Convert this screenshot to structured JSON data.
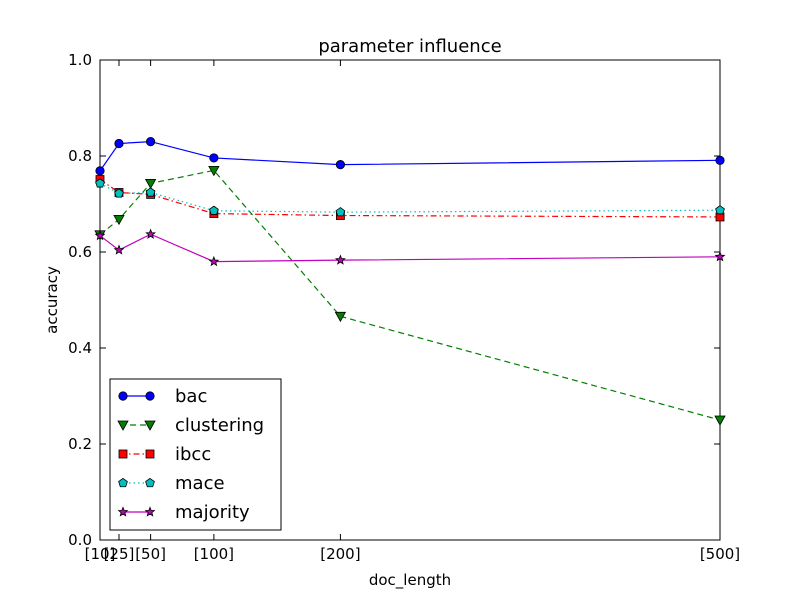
{
  "chart_data": {
    "type": "line",
    "title": "parameter influence",
    "xlabel": "doc_length",
    "ylabel": "accuracy",
    "x": [
      10,
      25,
      50,
      100,
      200,
      500
    ],
    "xtick_labels": [
      "[10]",
      "[25]",
      "[50]",
      "[100]",
      "[200]",
      "[500]"
    ],
    "xlim": [
      10,
      500
    ],
    "ylim": [
      0.0,
      1.0
    ],
    "yticks": [
      "0.0",
      "0.2",
      "0.4",
      "0.6",
      "0.8",
      "1.0"
    ],
    "grid": false,
    "legend_position": "lower-left",
    "series": [
      {
        "name": "bac",
        "color": "#0000ff",
        "marker": "circle",
        "linestyle": "solid",
        "values": [
          0.769,
          0.826,
          0.83,
          0.796,
          0.782,
          0.791
        ]
      },
      {
        "name": "clustering",
        "color": "#007f00",
        "marker": "triangle-down",
        "linestyle": "dashed",
        "values": [
          0.636,
          0.668,
          0.743,
          0.77,
          0.466,
          0.25
        ]
      },
      {
        "name": "ibcc",
        "color": "#ff0000",
        "marker": "square",
        "linestyle": "dashdot",
        "values": [
          0.751,
          0.724,
          0.72,
          0.68,
          0.676,
          0.673
        ]
      },
      {
        "name": "mace",
        "color": "#00bfbf",
        "marker": "pentagon",
        "linestyle": "dotted",
        "values": [
          0.743,
          0.722,
          0.724,
          0.686,
          0.683,
          0.687
        ]
      },
      {
        "name": "majority",
        "color": "#bf00bf",
        "marker": "star",
        "linestyle": "solid",
        "values": [
          0.634,
          0.604,
          0.637,
          0.58,
          0.583,
          0.59
        ]
      }
    ]
  }
}
